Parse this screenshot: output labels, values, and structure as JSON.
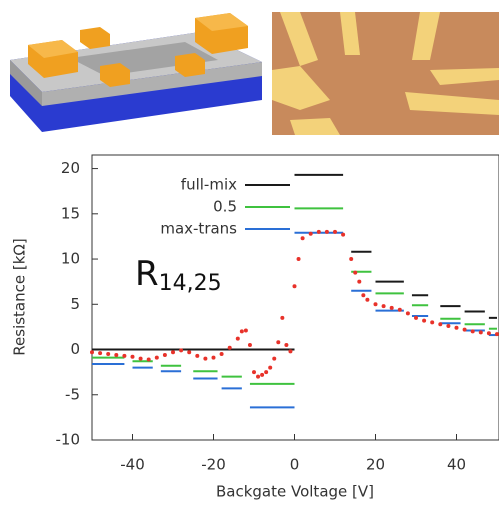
{
  "chart_data": {
    "type": "step",
    "x_label": "Backgate Voltage [V]",
    "y_label": "Resistance [kΩ]",
    "annotation": {
      "text": "R",
      "subscript": "14,25"
    },
    "xlim": [
      -50,
      50
    ],
    "ylim": [
      -10,
      21.5
    ],
    "xticks": [
      -40,
      -20,
      0,
      20,
      40
    ],
    "yticks": [
      -10,
      -5,
      0,
      5,
      10,
      15,
      20
    ],
    "series": [
      {
        "name": "full-mix",
        "color": "#1a1a1a",
        "x_start": [
          -50,
          0,
          14,
          20,
          29,
          36,
          42,
          48
        ],
        "x_end": [
          0,
          12,
          19,
          27,
          33,
          41,
          47,
          50
        ],
        "values": [
          0,
          19.3,
          10.8,
          7.5,
          6.0,
          4.8,
          4.2,
          3.5
        ]
      },
      {
        "name": "0.5",
        "color": "#3fc23f",
        "x_start": [
          -50,
          -40,
          -33,
          -25,
          -18,
          -11,
          0,
          14,
          20,
          29,
          36,
          42,
          48
        ],
        "x_end": [
          -42,
          -35,
          -28,
          -19,
          -13,
          0,
          12,
          19,
          27,
          33,
          41,
          47,
          50
        ],
        "values": [
          -0.9,
          -1.3,
          -1.8,
          -2.4,
          -3.0,
          -3.8,
          15.6,
          8.6,
          6.2,
          4.9,
          3.4,
          2.8,
          2.3
        ]
      },
      {
        "name": "max-trans",
        "color": "#2a6fd6",
        "x_start": [
          -50,
          -40,
          -33,
          -25,
          -18,
          -11,
          0,
          14,
          20,
          29,
          36,
          42,
          48
        ],
        "x_end": [
          -42,
          -35,
          -28,
          -19,
          -13,
          0,
          12,
          19,
          27,
          33,
          41,
          47,
          50
        ],
        "values": [
          -1.6,
          -2.0,
          -2.4,
          -3.2,
          -4.3,
          -6.4,
          12.9,
          6.5,
          4.3,
          3.7,
          2.9,
          2.1,
          1.6
        ]
      }
    ],
    "points": {
      "color": "#e8322a",
      "x": [
        -50,
        -48,
        -46,
        -44,
        -42,
        -40,
        -38,
        -36,
        -34,
        -32,
        -30,
        -28,
        -26,
        -24,
        -22,
        -20,
        -18,
        -16,
        -14,
        -13,
        -12,
        -11,
        -10,
        -9,
        -8,
        -7,
        -6,
        -5,
        -4,
        -3,
        -2,
        -1,
        0,
        1,
        2,
        4,
        6,
        8,
        10,
        12,
        14,
        15,
        16,
        17,
        18,
        20,
        22,
        24,
        26,
        28,
        30,
        32,
        34,
        36,
        38,
        40,
        42,
        44,
        46,
        48,
        50
      ],
      "values": [
        -0.3,
        -0.4,
        -0.5,
        -0.6,
        -0.7,
        -0.8,
        -1.0,
        -1.1,
        -0.9,
        -0.6,
        -0.3,
        -0.1,
        -0.3,
        -0.7,
        -1.0,
        -0.9,
        -0.5,
        0.2,
        1.2,
        2.0,
        2.1,
        0.5,
        -2.5,
        -3.0,
        -2.8,
        -2.5,
        -2.0,
        -1.0,
        0.8,
        3.5,
        0.5,
        -0.2,
        7,
        10,
        12.3,
        12.8,
        13,
        13,
        13,
        12.7,
        10,
        8.5,
        7.5,
        6,
        5.5,
        5,
        4.8,
        4.6,
        4.4,
        4,
        3.5,
        3.2,
        3,
        2.8,
        2.6,
        2.4,
        2.2,
        2.0,
        1.9,
        1.8,
        1.7
      ]
    }
  }
}
